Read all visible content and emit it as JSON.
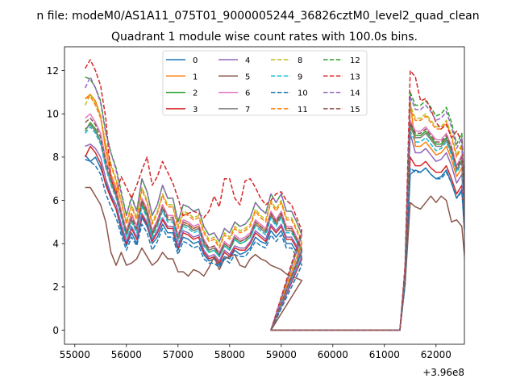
{
  "chart_data": {
    "type": "line",
    "suptitle": "n file: modeM0/AS1A11_075T01_9000005244_36826cztM0_level2_quad_clean",
    "title": "Quadrant 1 module wise count rates with 100.0s bins.",
    "xlabel": "",
    "ylabel": "",
    "x_offset_label": "+3.96e8",
    "xlim": [
      54800,
      62550
    ],
    "ylim": [
      -0.65,
      13.1
    ],
    "xticks": [
      55000,
      56000,
      57000,
      58000,
      59000,
      60000,
      61000,
      62000
    ],
    "xtick_labels": [
      "55000",
      "56000",
      "57000",
      "58000",
      "59000",
      "60000",
      "61000",
      "62000"
    ],
    "yticks": [
      0,
      2,
      4,
      6,
      8,
      10,
      12
    ],
    "ytick_labels": [
      "0",
      "2",
      "4",
      "6",
      "8",
      "10",
      "12"
    ],
    "legend_location": "upper center",
    "legend_columns": 4,
    "x_start": 55200,
    "x_step": 100,
    "zero_gap_start": 58800,
    "zero_gap_end": 61300,
    "series": [
      {
        "name": "0",
        "color": "#1f77b4",
        "dash": false,
        "s1": [
          8.1,
          7.8,
          8.0,
          7.5,
          6.8,
          6.2,
          5.6,
          4.6,
          3.9,
          4.5,
          4.0,
          5.2,
          4.8,
          4.0,
          4.3,
          4.9,
          4.5,
          4.5,
          3.7,
          4.3,
          4.2,
          4.0,
          4.1,
          3.5,
          3.2,
          3.3,
          3.0,
          3.4,
          3.3,
          3.7,
          3.5,
          3.6,
          3.8,
          4.3,
          4.1,
          4.0,
          4.6,
          4.3,
          4.6,
          4.0,
          4.0,
          3.6,
          3.3
        ],
        "s2": [
          2.2,
          7.2,
          7.4,
          7.3,
          7.5,
          7.2,
          7.0,
          7.1,
          7.4,
          6.8,
          6.1,
          6.5,
          2.9
        ]
      },
      {
        "name": "1",
        "color": "#ff7f0e",
        "dash": false,
        "s1": [
          10.7,
          10.9,
          10.6,
          9.9,
          8.3,
          7.2,
          6.6,
          5.5,
          4.6,
          5.4,
          4.8,
          6.0,
          5.5,
          4.5,
          5.0,
          5.8,
          5.3,
          5.3,
          4.3,
          5.0,
          4.9,
          4.7,
          4.8,
          4.1,
          3.7,
          3.8,
          3.5,
          4.0,
          3.8,
          4.3,
          4.1,
          4.2,
          4.4,
          5.0,
          4.8,
          4.6,
          5.4,
          5.0,
          5.4,
          4.7,
          4.7,
          4.2,
          3.7
        ],
        "s2": [
          2.5,
          10.6,
          8.5,
          8.5,
          8.7,
          8.4,
          8.1,
          8.2,
          8.5,
          7.9,
          7.1,
          7.5,
          3.4
        ]
      },
      {
        "name": "2",
        "color": "#2ca02c",
        "dash": false,
        "s1": [
          9.2,
          9.6,
          9.3,
          8.7,
          7.6,
          6.8,
          6.2,
          5.3,
          4.4,
          5.1,
          4.6,
          5.8,
          5.3,
          4.4,
          4.9,
          5.6,
          5.1,
          5.1,
          4.2,
          4.9,
          4.8,
          4.6,
          4.7,
          4.0,
          3.6,
          3.7,
          3.4,
          3.9,
          3.7,
          4.2,
          4.0,
          4.1,
          4.3,
          4.9,
          4.7,
          4.5,
          5.3,
          4.9,
          5.3,
          4.6,
          4.6,
          4.1,
          3.6
        ],
        "s2": [
          2.5,
          9.5,
          9.0,
          9.0,
          9.2,
          8.9,
          8.6,
          8.6,
          8.9,
          8.3,
          7.4,
          7.9,
          3.6
        ]
      },
      {
        "name": "3",
        "color": "#d62728",
        "dash": false,
        "s1": [
          8.0,
          8.5,
          8.2,
          7.7,
          6.7,
          6.1,
          5.6,
          4.8,
          4.0,
          4.7,
          4.2,
          5.3,
          4.9,
          4.1,
          4.5,
          5.1,
          4.7,
          4.7,
          3.8,
          4.5,
          4.4,
          4.2,
          4.3,
          3.6,
          3.3,
          3.4,
          3.1,
          3.6,
          3.4,
          3.8,
          3.7,
          3.7,
          4.0,
          4.5,
          4.3,
          4.1,
          4.8,
          4.5,
          4.8,
          4.2,
          4.2,
          3.8,
          3.3
        ],
        "s2": [
          2.3,
          8.0,
          7.6,
          7.6,
          7.8,
          7.5,
          7.3,
          7.3,
          7.6,
          7.0,
          6.3,
          6.7,
          3.0
        ]
      },
      {
        "name": "4",
        "color": "#9467bd",
        "dash": false,
        "s1": [
          8.5,
          8.6,
          8.4,
          8.0,
          7.0,
          6.3,
          5.8,
          4.9,
          4.1,
          4.8,
          4.3,
          5.4,
          5.0,
          4.2,
          4.6,
          5.2,
          4.8,
          4.8,
          3.9,
          4.6,
          4.5,
          4.3,
          4.4,
          3.7,
          3.4,
          3.5,
          3.2,
          3.7,
          3.5,
          3.9,
          3.8,
          3.8,
          4.1,
          4.6,
          4.4,
          4.2,
          4.9,
          4.6,
          4.9,
          4.3,
          4.3,
          3.9,
          3.4
        ],
        "s2": [
          2.4,
          9.1,
          8.2,
          8.2,
          8.4,
          8.1,
          7.8,
          7.9,
          8.2,
          7.6,
          6.8,
          7.2,
          3.2
        ]
      },
      {
        "name": "5",
        "color": "#8c564b",
        "dash": false,
        "s1": [
          6.6,
          6.6,
          6.2,
          5.8,
          5.0,
          3.6,
          3.0,
          3.6,
          3.0,
          3.1,
          3.3,
          3.8,
          3.4,
          3.0,
          3.2,
          3.6,
          3.3,
          3.3,
          2.7,
          2.7,
          2.5,
          2.8,
          2.7,
          2.5,
          2.9,
          3.4,
          2.8,
          3.3,
          3.4,
          3.5,
          3.0,
          2.9,
          3.3,
          3.5,
          3.3,
          3.2,
          3.0,
          2.9,
          2.8,
          2.6,
          2.5,
          2.4,
          2.3
        ],
        "s2": [
          2.1,
          5.9,
          5.7,
          5.6,
          5.9,
          6.2,
          5.9,
          6.2,
          6.0,
          5.0,
          5.1,
          4.8,
          2.2
        ]
      },
      {
        "name": "6",
        "color": "#e377c2",
        "dash": false,
        "s1": [
          9.8,
          10.0,
          9.6,
          9.1,
          7.9,
          7.1,
          6.4,
          5.5,
          4.6,
          5.3,
          4.8,
          6.1,
          5.6,
          4.6,
          5.1,
          5.8,
          5.3,
          5.3,
          4.4,
          5.1,
          5.0,
          4.8,
          4.9,
          4.2,
          3.8,
          3.9,
          3.6,
          4.1,
          3.9,
          4.4,
          4.2,
          4.3,
          4.5,
          5.1,
          4.9,
          4.7,
          5.5,
          5.1,
          5.5,
          4.8,
          4.8,
          4.3,
          3.8
        ],
        "s2": [
          2.6,
          9.7,
          9.2,
          9.2,
          9.4,
          9.1,
          8.8,
          8.8,
          9.1,
          8.5,
          7.6,
          8.1,
          3.7
        ]
      },
      {
        "name": "7",
        "color": "#7f7f7f",
        "dash": false,
        "s1": [
          9.3,
          9.5,
          9.2,
          8.7,
          7.6,
          6.8,
          6.2,
          5.3,
          4.5,
          5.1,
          4.6,
          5.9,
          5.4,
          4.5,
          4.9,
          5.6,
          5.1,
          5.1,
          4.2,
          4.9,
          4.8,
          4.6,
          4.7,
          4.0,
          3.7,
          3.8,
          3.5,
          4.0,
          3.8,
          4.3,
          4.1,
          4.2,
          4.4,
          4.9,
          4.7,
          4.5,
          5.3,
          4.9,
          5.3,
          4.6,
          4.6,
          4.2,
          3.7
        ],
        "s2": [
          2.5,
          9.4,
          8.9,
          8.9,
          9.1,
          8.8,
          8.5,
          8.5,
          8.8,
          8.2,
          7.4,
          7.8,
          3.5
        ]
      },
      {
        "name": "8",
        "color": "#bcbd22",
        "dash": true,
        "s1": [
          10.4,
          10.9,
          10.5,
          9.9,
          8.6,
          7.7,
          7.0,
          6.0,
          5.0,
          5.8,
          5.2,
          6.6,
          6.0,
          5.0,
          5.5,
          6.3,
          5.8,
          5.8,
          4.8,
          5.5,
          5.4,
          5.2,
          5.3,
          4.6,
          4.2,
          4.3,
          3.9,
          4.5,
          4.3,
          4.8,
          4.6,
          4.7,
          4.9,
          5.6,
          5.3,
          5.1,
          6.0,
          5.6,
          6.0,
          5.2,
          5.2,
          4.7,
          4.1
        ],
        "s2": [
          2.7,
          10.4,
          9.8,
          9.8,
          10.0,
          9.7,
          9.4,
          9.4,
          9.7,
          9.0,
          8.1,
          8.6,
          3.9
        ]
      },
      {
        "name": "9",
        "color": "#17becf",
        "dash": true,
        "s1": [
          9.1,
          9.4,
          9.1,
          8.6,
          7.5,
          6.7,
          6.1,
          5.2,
          4.3,
          5.0,
          4.5,
          5.7,
          5.2,
          4.3,
          4.8,
          5.5,
          5.0,
          5.0,
          4.1,
          4.8,
          4.7,
          4.5,
          4.6,
          3.9,
          3.6,
          3.7,
          3.4,
          3.9,
          3.7,
          4.2,
          4.0,
          4.1,
          4.3,
          4.8,
          4.6,
          4.4,
          5.2,
          4.8,
          5.2,
          4.5,
          4.5,
          4.1,
          3.6
        ],
        "s2": [
          2.5,
          9.2,
          8.7,
          8.7,
          8.9,
          8.6,
          8.3,
          8.4,
          8.7,
          8.1,
          7.3,
          7.7,
          3.5
        ]
      },
      {
        "name": "10",
        "color": "#1f77b4",
        "dash": true,
        "s1": [
          7.9,
          7.8,
          7.6,
          7.2,
          6.3,
          5.7,
          5.2,
          4.4,
          3.7,
          4.3,
          3.9,
          4.9,
          4.5,
          3.7,
          4.1,
          4.7,
          4.3,
          4.3,
          3.5,
          4.1,
          4.0,
          3.8,
          3.9,
          3.3,
          3.1,
          3.1,
          2.9,
          3.3,
          3.1,
          3.5,
          3.4,
          3.4,
          3.7,
          4.1,
          3.9,
          3.8,
          4.4,
          4.1,
          4.4,
          3.8,
          3.8,
          3.4,
          3.0
        ],
        "s2": [
          2.1,
          7.5,
          7.3,
          7.3,
          7.5,
          7.2,
          7.0,
          7.0,
          7.3,
          6.8,
          6.1,
          6.4,
          2.9
        ]
      },
      {
        "name": "11",
        "color": "#ff7f0e",
        "dash": true,
        "s1": [
          10.7,
          10.8,
          10.4,
          9.8,
          8.5,
          7.6,
          6.9,
          5.9,
          4.9,
          5.7,
          5.1,
          6.5,
          5.9,
          4.9,
          5.4,
          6.2,
          5.7,
          5.7,
          4.7,
          5.4,
          5.3,
          5.1,
          5.2,
          4.5,
          4.1,
          4.2,
          3.8,
          4.4,
          4.2,
          4.7,
          4.5,
          4.6,
          4.8,
          5.5,
          5.2,
          5.0,
          5.9,
          5.5,
          5.9,
          5.1,
          5.1,
          4.6,
          4.0
        ],
        "s2": [
          2.7,
          10.2,
          9.7,
          9.7,
          9.9,
          9.6,
          9.3,
          9.3,
          9.6,
          8.9,
          8.0,
          8.5,
          3.8
        ]
      },
      {
        "name": "12",
        "color": "#2ca02c",
        "dash": true,
        "s1": [
          11.7,
          11.6,
          11.2,
          10.6,
          9.2,
          8.2,
          7.5,
          6.4,
          5.3,
          6.2,
          5.5,
          7.0,
          6.4,
          5.3,
          5.8,
          6.7,
          6.1,
          6.1,
          5.0,
          5.8,
          5.7,
          5.5,
          5.6,
          4.8,
          4.4,
          4.5,
          4.1,
          4.7,
          4.5,
          5.0,
          4.8,
          4.9,
          5.2,
          5.9,
          5.6,
          5.4,
          6.3,
          5.9,
          6.3,
          5.5,
          5.5,
          5.0,
          4.4
        ],
        "s2": [
          2.8,
          11.0,
          10.4,
          10.4,
          10.6,
          10.3,
          9.9,
          10.0,
          10.3,
          9.6,
          8.6,
          9.1,
          4.1
        ]
      },
      {
        "name": "13",
        "color": "#d62728",
        "dash": true,
        "s1": [
          12.1,
          12.5,
          12.0,
          11.3,
          9.8,
          7.0,
          6.3,
          7.1,
          6.6,
          6.1,
          6.7,
          7.4,
          8.0,
          6.7,
          7.1,
          7.8,
          7.3,
          6.8,
          6.1,
          5.3,
          5.4,
          5.5,
          5.4,
          5.2,
          5.5,
          6.2,
          5.7,
          7.0,
          7.0,
          6.1,
          5.8,
          6.9,
          7.0,
          6.6,
          6.1,
          5.8,
          6.0,
          6.3,
          6.4,
          6.0,
          5.8,
          5.2,
          4.6
        ],
        "s2": [
          3.0,
          12.0,
          11.7,
          10.6,
          10.7,
          10.2,
          9.6,
          9.3,
          9.5,
          8.9,
          9.2,
          8.7,
          3.9
        ]
      },
      {
        "name": "14",
        "color": "#9467bd",
        "dash": true,
        "s1": [
          11.2,
          11.7,
          11.2,
          10.5,
          9.1,
          8.2,
          7.4,
          6.3,
          5.3,
          6.1,
          5.5,
          7.0,
          6.4,
          5.3,
          5.8,
          6.7,
          6.1,
          6.1,
          5.0,
          5.8,
          5.7,
          5.5,
          5.6,
          4.8,
          4.4,
          4.5,
          4.1,
          4.7,
          4.5,
          5.0,
          4.8,
          4.9,
          5.2,
          5.9,
          5.6,
          5.4,
          6.3,
          5.9,
          6.3,
          5.5,
          5.5,
          5.0,
          4.4
        ],
        "s2": [
          2.8,
          10.8,
          10.2,
          10.2,
          10.4,
          10.1,
          9.7,
          9.8,
          10.1,
          9.4,
          8.4,
          8.9,
          4.0
        ]
      },
      {
        "name": "15",
        "color": "#8c564b",
        "dash": true,
        "s1": [
          9.6,
          9.8,
          9.5,
          8.9,
          7.8,
          7.0,
          6.3,
          5.4,
          4.5,
          5.2,
          4.7,
          6.0,
          5.5,
          4.5,
          5.0,
          5.7,
          5.2,
          5.2,
          4.3,
          5.0,
          4.9,
          4.7,
          4.8,
          4.1,
          3.8,
          3.9,
          3.5,
          4.0,
          3.8,
          4.3,
          4.1,
          4.2,
          4.4,
          5.0,
          4.8,
          4.6,
          5.4,
          5.0,
          5.4,
          4.7,
          4.7,
          4.2,
          3.7
        ],
        "s2": [
          2.6,
          9.6,
          9.1,
          9.1,
          9.3,
          9.0,
          8.7,
          8.7,
          9.0,
          8.4,
          7.5,
          8.0,
          3.6
        ]
      }
    ]
  }
}
